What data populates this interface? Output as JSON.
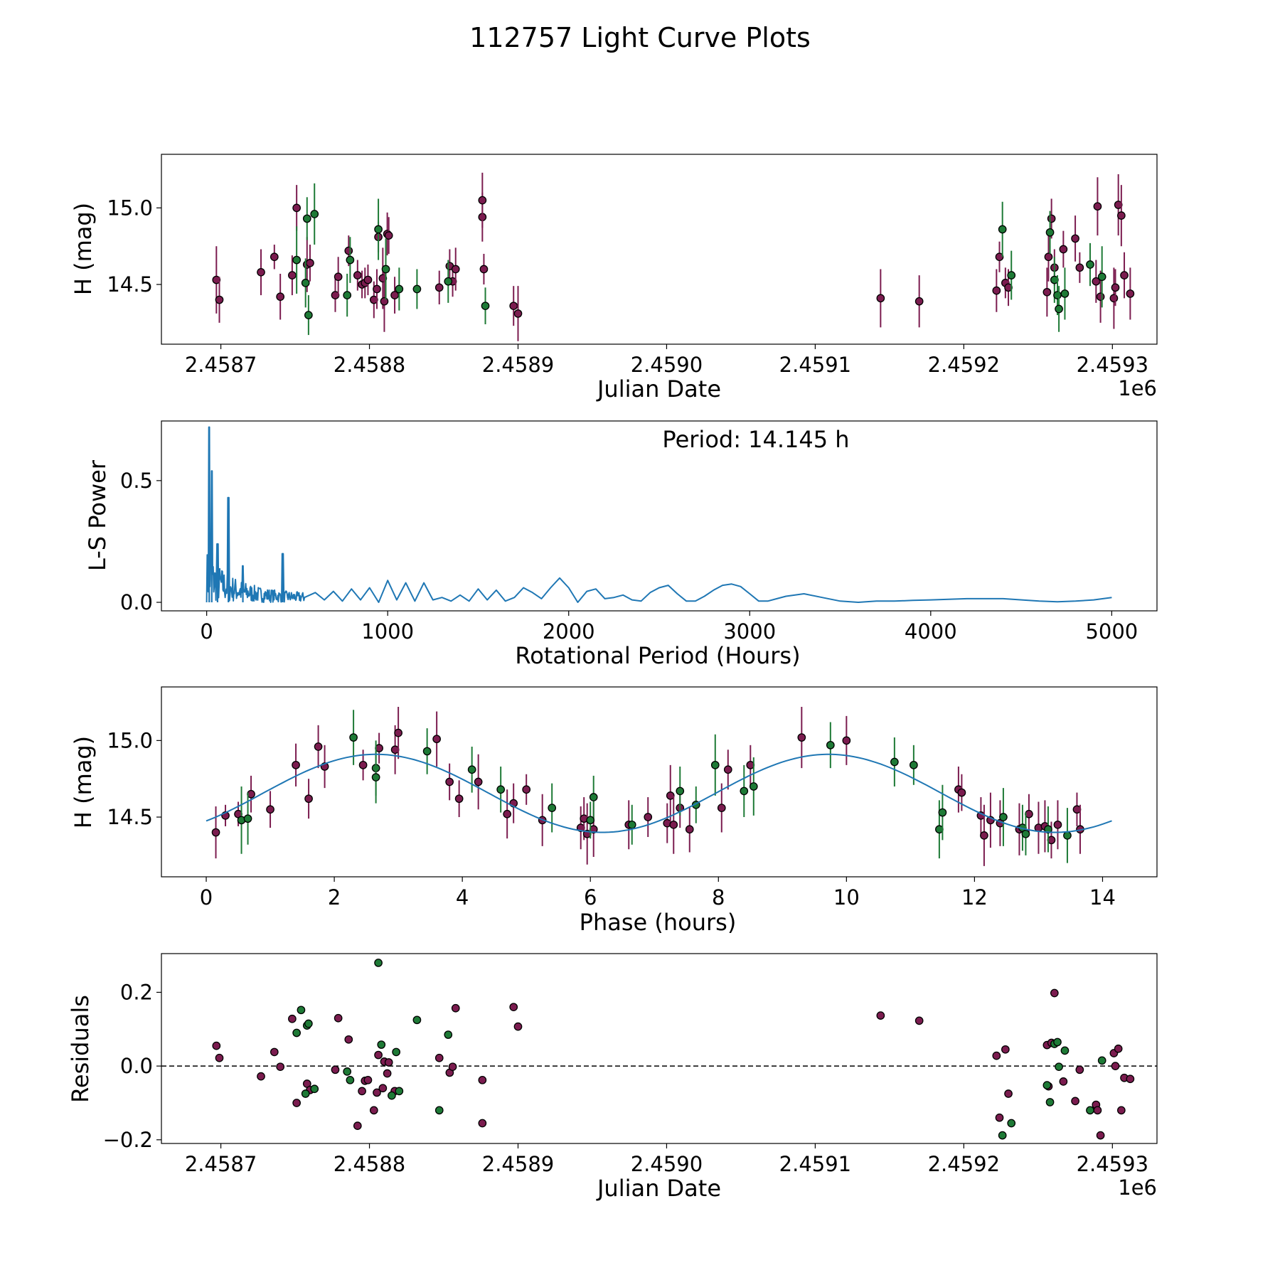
{
  "figure": {
    "title": "112757 Light Curve Plots",
    "colors": {
      "filter_a": "#7b1c4f",
      "filter_b": "#1e7a36",
      "model": "#1f77b4",
      "axis": "#000000",
      "marker_edge": "#000000"
    }
  },
  "chart_data": [
    {
      "id": "lightcurve",
      "type": "scatter",
      "title": "",
      "xlabel": "Julian Date",
      "ylabel": "H (mag)",
      "x_offset_label": "1e6",
      "xlim": [
        2.45866,
        2.45933
      ],
      "ylim": [
        14.11,
        15.35
      ],
      "y_inverted": false,
      "xticks": [
        2.4587,
        2.4588,
        2.4589,
        2.459,
        2.4591,
        2.4592,
        2.4593
      ],
      "xtick_labels": [
        "2.4587",
        "2.4588",
        "2.4589",
        "2.4590",
        "2.4591",
        "2.4592",
        "2.4593"
      ],
      "yticks": [
        14.5,
        15.0
      ],
      "ytick_labels": [
        "14.5",
        "15.0"
      ],
      "series": [
        {
          "name": "filter_a",
          "x": [
            2.458697,
            2.458699,
            2.458727,
            2.458736,
            2.45874,
            2.458748,
            2.458751,
            2.458758,
            2.45876,
            2.458777,
            2.458779,
            2.458786,
            2.458792,
            2.458795,
            2.458797,
            2.458799,
            2.458803,
            2.458805,
            2.458806,
            2.458809,
            2.45881,
            2.458812,
            2.458813,
            2.458817,
            2.458847,
            2.458854,
            2.458856,
            2.458858,
            2.458876,
            2.458876,
            2.458877,
            2.458897,
            2.4589,
            2.459144,
            2.45917,
            2.459222,
            2.459224,
            2.459228,
            2.45923,
            2.459256,
            2.459257,
            2.459259,
            2.459261,
            2.459267,
            2.459275,
            2.459278,
            2.459289,
            2.45929,
            2.459292,
            2.459301,
            2.459302,
            2.459304,
            2.459306,
            2.459308,
            2.459312
          ],
          "y": [
            14.53,
            14.4,
            14.58,
            14.68,
            14.42,
            14.56,
            15.0,
            14.63,
            14.64,
            14.43,
            14.55,
            14.72,
            14.56,
            14.5,
            14.51,
            14.53,
            14.4,
            14.47,
            14.81,
            14.54,
            14.39,
            14.83,
            14.82,
            14.43,
            14.48,
            14.62,
            14.52,
            14.6,
            14.94,
            15.05,
            14.6,
            14.36,
            14.31,
            14.41,
            14.39,
            14.46,
            14.68,
            14.51,
            14.48,
            14.45,
            14.68,
            14.93,
            14.61,
            14.73,
            14.8,
            14.61,
            14.52,
            15.01,
            14.42,
            14.41,
            14.48,
            15.02,
            14.95,
            14.56,
            14.44
          ],
          "err": [
            0.22,
            0.15,
            0.15,
            0.08,
            0.15,
            0.13,
            0.15,
            0.18,
            0.12,
            0.11,
            0.13,
            0.1,
            0.1,
            0.09,
            0.1,
            0.1,
            0.12,
            0.13,
            0.1,
            0.2,
            0.2,
            0.14,
            0.12,
            0.12,
            0.11,
            0.11,
            0.1,
            0.14,
            0.16,
            0.18,
            0.1,
            0.13,
            0.18,
            0.19,
            0.17,
            0.14,
            0.1,
            0.1,
            0.12,
            0.16,
            0.16,
            0.13,
            0.12,
            0.12,
            0.15,
            0.1,
            0.14,
            0.19,
            0.17,
            0.2,
            0.12,
            0.2,
            0.2,
            0.15,
            0.17
          ]
        },
        {
          "name": "filter_b",
          "x": [
            2.458751,
            2.458757,
            2.458758,
            2.458759,
            2.458763,
            2.458785,
            2.458787,
            2.458806,
            2.458811,
            2.45882,
            2.458832,
            2.458853,
            2.458878,
            2.459226,
            2.459232,
            2.459258,
            2.459261,
            2.459263,
            2.459264,
            2.459268,
            2.459285,
            2.459293
          ],
          "y": [
            14.66,
            14.51,
            14.93,
            14.3,
            14.96,
            14.43,
            14.66,
            14.86,
            14.6,
            14.47,
            14.47,
            14.52,
            14.36,
            14.86,
            14.56,
            14.84,
            14.53,
            14.43,
            14.34,
            14.44,
            14.63,
            14.55
          ],
          "err": [
            0.22,
            0.16,
            0.14,
            0.13,
            0.2,
            0.14,
            0.15,
            0.2,
            0.2,
            0.14,
            0.13,
            0.14,
            0.12,
            0.18,
            0.16,
            0.14,
            0.15,
            0.13,
            0.15,
            0.17,
            0.14,
            0.2
          ]
        }
      ]
    },
    {
      "id": "periodogram",
      "type": "line",
      "xlabel": "Rotational Period (Hours)",
      "ylabel": "L-S Power",
      "annotation": "Period: 14.145 h",
      "xlim": [
        -250,
        5250
      ],
      "ylim": [
        -0.035,
        0.745
      ],
      "xticks": [
        0,
        1000,
        2000,
        3000,
        4000,
        5000
      ],
      "xtick_labels": [
        "0",
        "1000",
        "2000",
        "3000",
        "4000",
        "5000"
      ],
      "yticks": [
        0.0,
        0.5
      ],
      "ytick_labels": [
        "0.0",
        "0.5"
      ],
      "peaks": [
        {
          "x": 14,
          "y": 0.72
        },
        {
          "x": 28,
          "y": 0.54
        },
        {
          "x": 60,
          "y": 0.24
        },
        {
          "x": 120,
          "y": 0.43
        },
        {
          "x": 200,
          "y": 0.15
        },
        {
          "x": 420,
          "y": 0.2
        }
      ],
      "smooth": {
        "x": [
          540,
          600,
          650,
          700,
          750,
          800,
          850,
          900,
          950,
          1000,
          1050,
          1100,
          1150,
          1200,
          1250,
          1300,
          1350,
          1400,
          1450,
          1500,
          1550,
          1600,
          1650,
          1700,
          1750,
          1800,
          1850,
          1900,
          1950,
          2000,
          2050,
          2100,
          2150,
          2200,
          2250,
          2300,
          2350,
          2400,
          2450,
          2500,
          2550,
          2600,
          2650,
          2700,
          2750,
          2800,
          2850,
          2900,
          2950,
          3000,
          3050,
          3100,
          3150,
          3200,
          3300,
          3400,
          3500,
          3600,
          3700,
          3800,
          3900,
          4000,
          4200,
          4400,
          4600,
          4700,
          4800,
          4900,
          5000
        ],
        "y": [
          0.02,
          0.04,
          0.01,
          0.045,
          0.005,
          0.055,
          0.01,
          0.06,
          0.0,
          0.09,
          0.01,
          0.08,
          0.005,
          0.08,
          0.01,
          0.02,
          0.005,
          0.03,
          0.005,
          0.055,
          0.01,
          0.05,
          0.005,
          0.02,
          0.06,
          0.04,
          0.015,
          0.06,
          0.1,
          0.06,
          0.0,
          0.045,
          0.055,
          0.015,
          0.02,
          0.03,
          0.01,
          0.005,
          0.04,
          0.06,
          0.07,
          0.035,
          0.005,
          0.005,
          0.025,
          0.05,
          0.07,
          0.075,
          0.065,
          0.035,
          0.005,
          0.005,
          0.015,
          0.025,
          0.035,
          0.02,
          0.005,
          0.0,
          0.005,
          0.005,
          0.008,
          0.01,
          0.015,
          0.015,
          0.005,
          0.002,
          0.005,
          0.01,
          0.02
        ]
      }
    },
    {
      "id": "phasefold",
      "type": "scatter",
      "xlabel": "Phase (hours)",
      "ylabel": "H (mag)",
      "xlim": [
        -0.7,
        14.85
      ],
      "ylim": [
        14.11,
        15.35
      ],
      "xticks": [
        0,
        2,
        4,
        6,
        8,
        10,
        12,
        14
      ],
      "xtick_labels": [
        "0",
        "2",
        "4",
        "6",
        "8",
        "10",
        "12",
        "14"
      ],
      "yticks": [
        14.5,
        15.0
      ],
      "ytick_labels": [
        "14.5",
        "15.0"
      ],
      "model": {
        "type": "sinusoid",
        "period_hours": 7.07,
        "mean": 14.655,
        "amplitude": 0.255,
        "peak_phase": 2.65,
        "x_min": 0,
        "x_max": 14.145
      },
      "series": [
        {
          "name": "filter_a",
          "x": [
            0.15,
            0.3,
            0.5,
            0.7,
            1.0,
            1.4,
            1.6,
            1.75,
            1.85,
            2.45,
            2.7,
            2.95,
            3.0,
            3.6,
            3.8,
            3.95,
            4.25,
            4.7,
            4.8,
            5.0,
            5.25,
            5.85,
            5.9,
            5.95,
            6.05,
            6.6,
            6.9,
            7.2,
            7.25,
            7.3,
            7.4,
            7.55,
            8.05,
            8.15,
            8.5,
            9.3,
            10.0,
            11.75,
            11.8,
            12.1,
            12.15,
            12.25,
            12.4,
            12.7,
            12.85,
            13.0,
            13.1,
            13.2,
            13.3,
            13.6,
            13.65
          ],
          "y": [
            14.4,
            14.51,
            14.52,
            14.65,
            14.55,
            14.84,
            14.62,
            14.96,
            14.83,
            14.84,
            14.95,
            14.94,
            15.05,
            15.01,
            14.73,
            14.62,
            14.73,
            14.52,
            14.59,
            14.68,
            14.48,
            14.43,
            14.49,
            14.39,
            14.42,
            14.45,
            14.5,
            14.46,
            14.64,
            14.45,
            14.56,
            14.42,
            14.56,
            14.81,
            14.84,
            15.02,
            15.0,
            14.68,
            14.66,
            14.51,
            14.38,
            14.48,
            14.46,
            14.42,
            14.52,
            14.43,
            14.44,
            14.35,
            14.45,
            14.55,
            14.42
          ],
          "err": [
            0.17,
            0.07,
            0.08,
            0.12,
            0.12,
            0.14,
            0.13,
            0.14,
            0.14,
            0.1,
            0.1,
            0.16,
            0.17,
            0.18,
            0.12,
            0.12,
            0.18,
            0.16,
            0.13,
            0.1,
            0.17,
            0.14,
            0.14,
            0.2,
            0.18,
            0.16,
            0.13,
            0.13,
            0.2,
            0.19,
            0.13,
            0.15,
            0.16,
            0.13,
            0.13,
            0.2,
            0.16,
            0.15,
            0.12,
            0.12,
            0.2,
            0.18,
            0.15,
            0.17,
            0.13,
            0.17,
            0.17,
            0.12,
            0.16,
            0.11,
            0.16
          ]
        },
        {
          "name": "filter_b",
          "x": [
            0.55,
            0.65,
            2.3,
            2.65,
            2.65,
            3.45,
            4.15,
            4.6,
            5.4,
            6.05,
            6.0,
            6.65,
            7.4,
            7.65,
            7.95,
            8.4,
            8.55,
            9.75,
            10.75,
            11.05,
            11.45,
            11.5,
            12.45,
            12.75,
            12.8,
            13.15,
            13.45
          ],
          "y": [
            14.48,
            14.49,
            15.02,
            14.82,
            14.76,
            14.93,
            14.81,
            14.68,
            14.56,
            14.63,
            14.48,
            14.45,
            14.67,
            14.58,
            14.84,
            14.67,
            14.7,
            14.97,
            14.86,
            14.84,
            14.42,
            14.53,
            14.5,
            14.43,
            14.39,
            14.42,
            14.38
          ],
          "err": [
            0.22,
            0.17,
            0.18,
            0.18,
            0.17,
            0.15,
            0.15,
            0.15,
            0.16,
            0.14,
            0.12,
            0.13,
            0.16,
            0.12,
            0.2,
            0.17,
            0.19,
            0.15,
            0.16,
            0.13,
            0.19,
            0.18,
            0.19,
            0.15,
            0.14,
            0.15,
            0.18
          ]
        }
      ]
    },
    {
      "id": "residuals",
      "type": "scatter",
      "xlabel": "Julian Date",
      "ylabel": "Residuals",
      "x_offset_label": "1e6",
      "xlim": [
        2.45866,
        2.45933
      ],
      "ylim": [
        -0.21,
        0.305
      ],
      "xticks": [
        2.4587,
        2.4588,
        2.4589,
        2.459,
        2.4591,
        2.4592,
        2.4593
      ],
      "xtick_labels": [
        "2.4587",
        "2.4588",
        "2.4589",
        "2.4590",
        "2.4591",
        "2.4592",
        "2.4593"
      ],
      "yticks": [
        -0.2,
        0.0,
        0.2
      ],
      "ytick_labels": [
        "−0.2",
        "0.0",
        "0.2"
      ],
      "reference_line": 0.0,
      "series": [
        {
          "name": "filter_a",
          "x": [
            2.458697,
            2.458699,
            2.458727,
            2.458736,
            2.45874,
            2.458748,
            2.458751,
            2.458758,
            2.45876,
            2.458777,
            2.458779,
            2.458786,
            2.458792,
            2.458795,
            2.458797,
            2.458799,
            2.458803,
            2.458805,
            2.458806,
            2.458809,
            2.45881,
            2.458812,
            2.458813,
            2.458817,
            2.458847,
            2.458854,
            2.458856,
            2.458858,
            2.458876,
            2.458876,
            2.458897,
            2.4589,
            2.459144,
            2.45917,
            2.459222,
            2.459224,
            2.459228,
            2.45923,
            2.459256,
            2.459257,
            2.459259,
            2.459261,
            2.459267,
            2.459275,
            2.459278,
            2.459289,
            2.45929,
            2.459292,
            2.459301,
            2.459302,
            2.459304,
            2.459306,
            2.459308,
            2.459312
          ],
          "y": [
            0.055,
            0.022,
            -0.028,
            0.038,
            -0.002,
            0.128,
            -0.1,
            -0.048,
            -0.065,
            -0.01,
            0.13,
            0.072,
            -0.162,
            -0.068,
            -0.04,
            -0.038,
            -0.12,
            -0.072,
            0.03,
            -0.06,
            0.012,
            -0.02,
            0.01,
            -0.068,
            0.022,
            -0.018,
            -0.002,
            0.157,
            -0.038,
            -0.155,
            0.16,
            0.107,
            0.137,
            0.123,
            0.028,
            -0.14,
            0.045,
            -0.075,
            0.057,
            -0.055,
            0.063,
            0.198,
            -0.042,
            -0.095,
            -0.01,
            -0.105,
            -0.12,
            -0.188,
            0.035,
            0.0,
            0.047,
            -0.12,
            -0.032,
            -0.035
          ],
          "err": []
        },
        {
          "name": "filter_b",
          "x": [
            2.458751,
            2.458754,
            2.458757,
            2.458758,
            2.458759,
            2.458763,
            2.458785,
            2.458787,
            2.458806,
            2.458808,
            2.458815,
            2.458818,
            2.45882,
            2.458832,
            2.458847,
            2.458853,
            2.459226,
            2.459232,
            2.459256,
            2.459258,
            2.459261,
            2.459263,
            2.459264,
            2.459268,
            2.459285,
            2.459293
          ],
          "y": [
            0.09,
            0.152,
            -0.075,
            0.11,
            0.115,
            -0.062,
            -0.015,
            -0.038,
            0.28,
            0.058,
            -0.08,
            0.038,
            -0.068,
            0.125,
            -0.12,
            0.085,
            -0.188,
            -0.155,
            -0.052,
            -0.098,
            0.06,
            0.065,
            -0.002,
            0.042,
            -0.12,
            0.015
          ],
          "err": []
        }
      ]
    }
  ]
}
